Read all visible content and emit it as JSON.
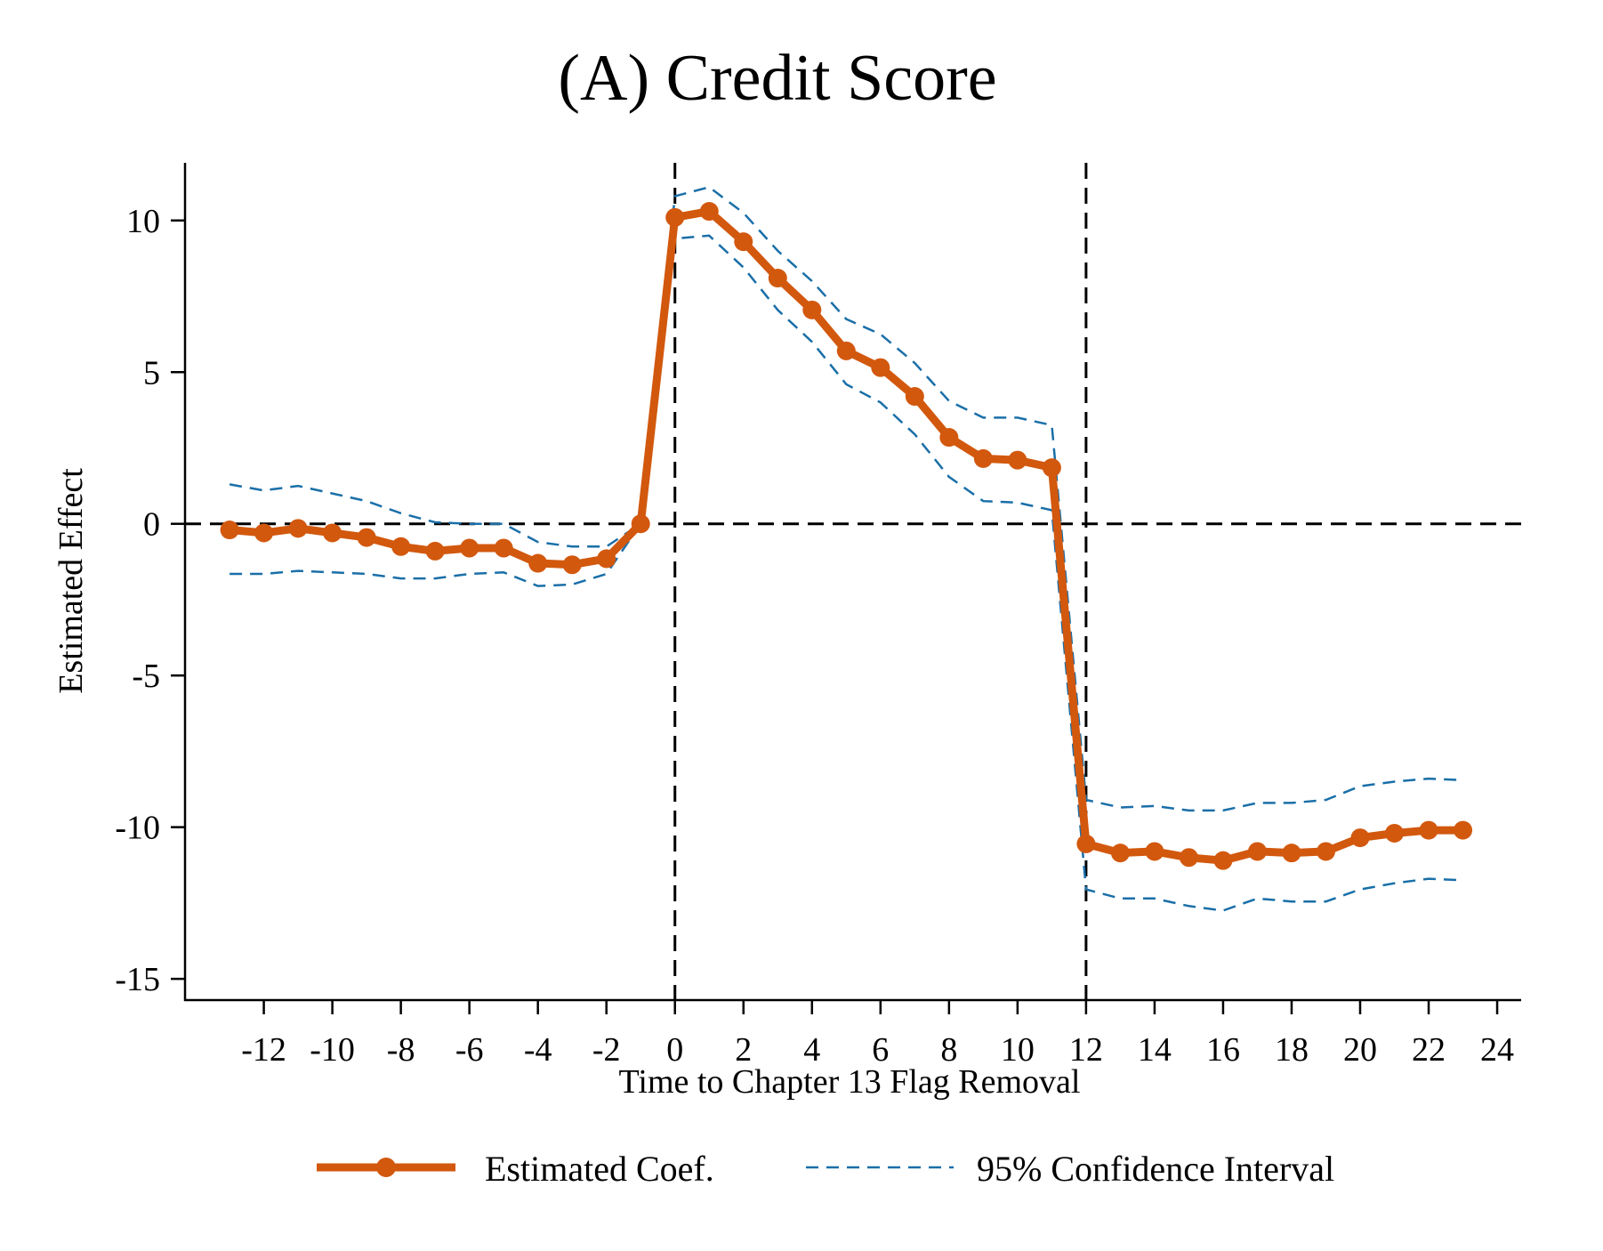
{
  "chart_data": {
    "type": "line",
    "title": "(A) Credit Score",
    "xlabel": "Time to Chapter 13 Flag Removal",
    "ylabel": "Estimated Effect",
    "xlim": [
      -14.3,
      24.7
    ],
    "ylim": [
      -15.7,
      11.9
    ],
    "xticks": [
      -12,
      -10,
      -8,
      -6,
      -4,
      -2,
      0,
      2,
      4,
      6,
      8,
      10,
      12,
      14,
      16,
      18,
      20,
      22,
      24
    ],
    "xtick_labels": [
      "-12",
      "-10",
      "-8",
      "-6",
      "-4",
      "-2",
      "0",
      "2",
      "4",
      "6",
      "8",
      "10",
      "12",
      "14",
      "16",
      "18",
      "20",
      "22",
      "24"
    ],
    "yticks": [
      10,
      5,
      0,
      -5,
      -10,
      -15
    ],
    "ytick_labels": [
      "10",
      "5",
      "0",
      "-5",
      "-10",
      "-15"
    ],
    "reference_lines": {
      "vertical": [
        0,
        12
      ],
      "horizontal": [
        0
      ]
    },
    "grid": false,
    "legend_position": "bottom",
    "colors": {
      "coef": "#d2580e",
      "ci": "#1a6fa8",
      "reference": "#000000"
    },
    "series": [
      {
        "name": "Estimated Coef.",
        "style": "solid-markers",
        "x": [
          -13,
          -12,
          -11,
          -10,
          -9,
          -8,
          -7,
          -6,
          -5,
          -4,
          -3,
          -2,
          -1,
          0,
          1,
          2,
          3,
          4,
          5,
          6,
          7,
          8,
          9,
          10,
          11,
          12,
          13,
          14,
          15,
          16,
          17,
          18,
          19,
          20,
          21,
          22,
          23
        ],
        "y": [
          -0.2,
          -0.3,
          -0.15,
          -0.3,
          -0.45,
          -0.75,
          -0.9,
          -0.8,
          -0.8,
          -1.3,
          -1.35,
          -1.15,
          0.0,
          10.1,
          10.3,
          9.3,
          8.1,
          7.05,
          5.7,
          5.15,
          4.2,
          2.85,
          2.15,
          2.1,
          1.85,
          -10.55,
          -10.85,
          -10.8,
          -11.0,
          -11.1,
          -10.8,
          -10.85,
          -10.8,
          -10.35,
          -10.2,
          -10.1,
          -10.1
        ]
      },
      {
        "name": "95% Confidence Interval",
        "role": "upper",
        "style": "dashed",
        "x": [
          -13,
          -12,
          -11,
          -10,
          -9,
          -8,
          -7,
          -6,
          -5,
          -4,
          -3,
          -2,
          -1,
          0,
          1,
          2,
          3,
          4,
          5,
          6,
          7,
          8,
          9,
          10,
          11,
          12,
          13,
          14,
          15,
          16,
          17,
          18,
          19,
          20,
          21,
          22,
          23
        ],
        "y": [
          1.3,
          1.1,
          1.25,
          1.0,
          0.75,
          0.35,
          0.05,
          0.0,
          0.0,
          -0.6,
          -0.75,
          -0.75,
          0.0,
          10.8,
          11.1,
          10.25,
          9.0,
          8.0,
          6.75,
          6.25,
          5.3,
          4.05,
          3.5,
          3.5,
          3.25,
          -9.1,
          -9.35,
          -9.3,
          -9.45,
          -9.45,
          -9.2,
          -9.2,
          -9.1,
          -8.65,
          -8.5,
          -8.4,
          -8.45
        ]
      },
      {
        "name": "95% Confidence Interval",
        "role": "lower",
        "style": "dashed",
        "x": [
          -13,
          -12,
          -11,
          -10,
          -9,
          -8,
          -7,
          -6,
          -5,
          -4,
          -3,
          -2,
          -1,
          0,
          1,
          2,
          3,
          4,
          5,
          6,
          7,
          8,
          9,
          10,
          11,
          12,
          13,
          14,
          15,
          16,
          17,
          18,
          19,
          20,
          21,
          22,
          23
        ],
        "y": [
          -1.65,
          -1.65,
          -1.55,
          -1.6,
          -1.65,
          -1.8,
          -1.8,
          -1.65,
          -1.6,
          -2.05,
          -2.0,
          -1.65,
          0.0,
          9.4,
          9.5,
          8.45,
          7.05,
          6.0,
          4.6,
          4.0,
          2.95,
          1.55,
          0.75,
          0.7,
          0.45,
          -12.05,
          -12.35,
          -12.35,
          -12.6,
          -12.75,
          -12.35,
          -12.45,
          -12.45,
          -12.05,
          -11.85,
          -11.7,
          -11.75
        ]
      }
    ],
    "legend": [
      {
        "label": "Estimated Coef.",
        "style": "solid-markers"
      },
      {
        "label": "95% Confidence Interval",
        "style": "dashed"
      }
    ]
  }
}
